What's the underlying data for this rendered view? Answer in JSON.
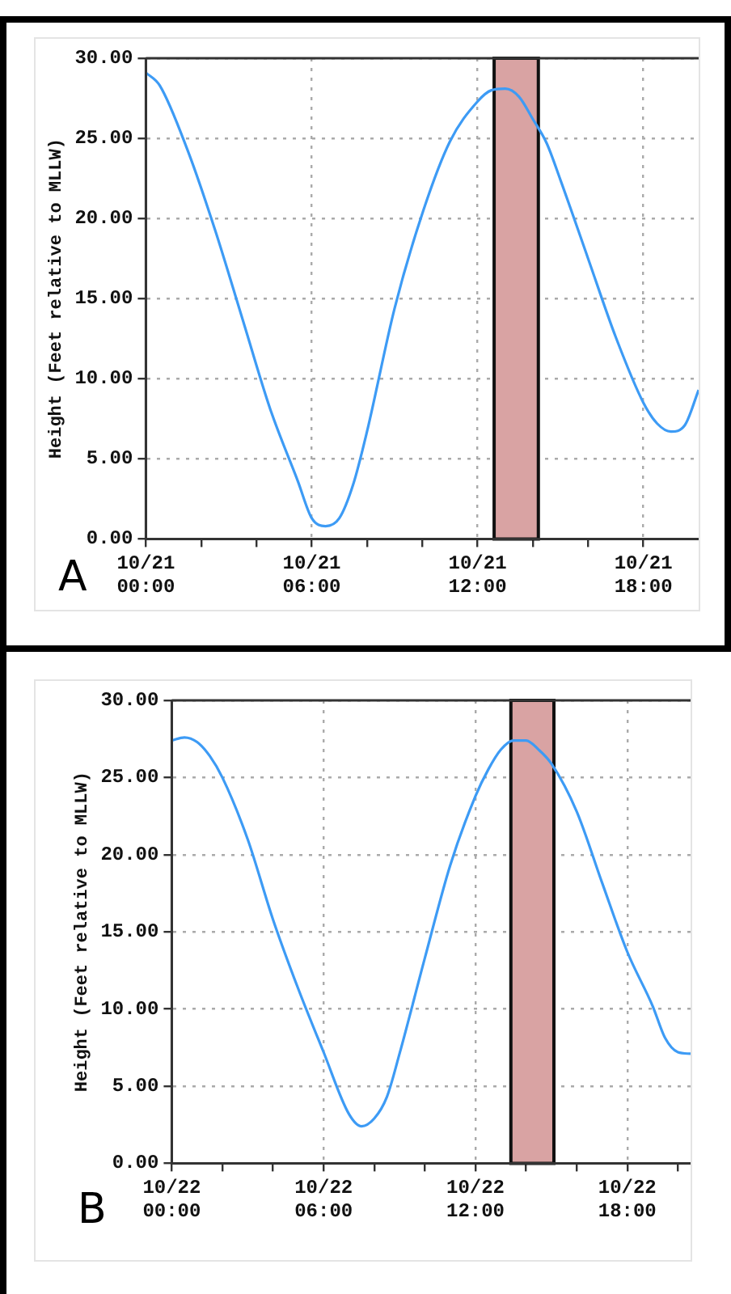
{
  "chart_data": [
    {
      "type": "line",
      "ylabel": "Height (Feet relative to MLLW)",
      "annotations": [
        "A"
      ],
      "xlim": [
        "--10-21T00:00",
        "--10-21T20:00"
      ],
      "xticks": [
        {
          "value": "--10-21T00:00",
          "label": "10/21 00:00"
        },
        {
          "value": "--10-21T02:00",
          "label": null
        },
        {
          "value": "--10-21T04:00",
          "label": null
        },
        {
          "value": "--10-21T06:00",
          "label": "10/21 06:00"
        },
        {
          "value": "--10-21T08:00",
          "label": null
        },
        {
          "value": "--10-21T10:00",
          "label": null
        },
        {
          "value": "--10-21T12:00",
          "label": "10/21 12:00"
        },
        {
          "value": "--10-21T14:00",
          "label": null
        },
        {
          "value": "--10-21T16:00",
          "label": null
        },
        {
          "value": "--10-21T18:00",
          "label": "10/21 18:00"
        }
      ],
      "ylim": [
        0,
        30
      ],
      "yticks": [
        {
          "value": 0,
          "label": "0.00"
        },
        {
          "value": 5,
          "label": "5.00"
        },
        {
          "value": 10,
          "label": "10.00"
        },
        {
          "value": 15,
          "label": "15.00"
        },
        {
          "value": 20,
          "label": "20.00"
        },
        {
          "value": 25,
          "label": "25.00"
        },
        {
          "value": 30,
          "label": "30.00"
        }
      ],
      "grid": true,
      "bands": [
        {
          "axis": "x",
          "from": "--10-21T12:36",
          "to": "--10-21T14:12",
          "color": "#d9a3a3"
        }
      ],
      "series": [
        {
          "color": "#3d9bf5",
          "x": [
            "--10-21T00:00",
            "--10-21T00:30",
            "--10-21T01:30",
            "--10-21T02:30",
            "--10-21T03:30",
            "--10-21T04:30",
            "--10-21T05:30",
            "--10-21T06:00",
            "--10-21T06:30",
            "--10-21T07:00",
            "--10-21T07:30",
            "--10-21T08:00",
            "--10-21T09:00",
            "--10-21T10:00",
            "--10-21T11:00",
            "--10-21T12:00",
            "--10-21T12:30",
            "--10-21T13:00",
            "--10-21T13:30",
            "--10-21T14:00",
            "--10-21T14:30",
            "--10-21T15:00",
            "--10-21T16:00",
            "--10-21T17:00",
            "--10-21T18:00",
            "--10-21T18:30",
            "--10-21T19:00",
            "--10-21T19:30",
            "--10-21T20:00"
          ],
          "values": [
            29.1,
            28.3,
            24.3,
            19.3,
            13.7,
            8.1,
            3.6,
            1.3,
            0.8,
            1.3,
            3.4,
            6.7,
            14.4,
            20.3,
            24.8,
            27.3,
            28.0,
            28.1,
            27.6,
            26.2,
            24.7,
            22.4,
            17.5,
            12.6,
            8.5,
            7.2,
            6.7,
            7.1,
            9.3
          ]
        }
      ]
    },
    {
      "type": "line",
      "ylabel": "Height (Feet relative to MLLW)",
      "annotations": [
        "B"
      ],
      "xlim": [
        "--10-22T00:00",
        "--10-22T20:30"
      ],
      "xticks": [
        {
          "value": "--10-22T00:00",
          "label": "10/22 00:00"
        },
        {
          "value": "--10-22T02:00",
          "label": null
        },
        {
          "value": "--10-22T04:00",
          "label": null
        },
        {
          "value": "--10-22T06:00",
          "label": "10/22 06:00"
        },
        {
          "value": "--10-22T08:00",
          "label": null
        },
        {
          "value": "--10-22T10:00",
          "label": null
        },
        {
          "value": "--10-22T12:00",
          "label": "10/22 12:00"
        },
        {
          "value": "--10-22T14:00",
          "label": null
        },
        {
          "value": "--10-22T16:00",
          "label": null
        },
        {
          "value": "--10-22T18:00",
          "label": "10/22 18:00"
        },
        {
          "value": "--10-22T20:00",
          "label": null
        }
      ],
      "ylim": [
        0,
        30
      ],
      "yticks": [
        {
          "value": 0,
          "label": "0.00"
        },
        {
          "value": 5,
          "label": "5.00"
        },
        {
          "value": 10,
          "label": "10.00"
        },
        {
          "value": 15,
          "label": "15.00"
        },
        {
          "value": 20,
          "label": "20.00"
        },
        {
          "value": 25,
          "label": "25.00"
        },
        {
          "value": 30,
          "label": "30.00"
        }
      ],
      "grid": true,
      "bands": [
        {
          "axis": "x",
          "from": "--10-22T13:24",
          "to": "--10-22T15:06",
          "color": "#d9a3a3"
        }
      ],
      "series": [
        {
          "color": "#3d9bf5",
          "x": [
            "--10-22T00:00",
            "--10-22T00:30",
            "--10-22T01:00",
            "--10-22T01:30",
            "--10-22T02:00",
            "--10-22T03:00",
            "--10-22T04:00",
            "--10-22T05:00",
            "--10-22T06:00",
            "--10-22T07:00",
            "--10-22T07:30",
            "--10-22T08:00",
            "--10-22T08:30",
            "--10-22T09:00",
            "--10-22T10:00",
            "--10-22T11:00",
            "--10-22T12:00",
            "--10-22T12:30",
            "--10-22T13:00",
            "--10-22T13:30",
            "--10-22T14:00",
            "--10-22T14:30",
            "--10-22T15:00",
            "--10-22T16:00",
            "--10-22T17:00",
            "--10-22T18:00",
            "--10-22T19:00",
            "--10-22T19:30",
            "--10-22T20:00",
            "--10-22T20:30"
          ],
          "values": [
            27.4,
            27.6,
            27.3,
            26.4,
            25.0,
            21.0,
            15.8,
            11.3,
            7.2,
            3.2,
            2.4,
            2.9,
            4.3,
            7.1,
            13.3,
            19.3,
            23.8,
            25.5,
            26.8,
            27.4,
            27.4,
            26.8,
            25.9,
            22.8,
            18.2,
            13.7,
            10.2,
            8.1,
            7.2,
            7.1
          ]
        }
      ]
    }
  ]
}
